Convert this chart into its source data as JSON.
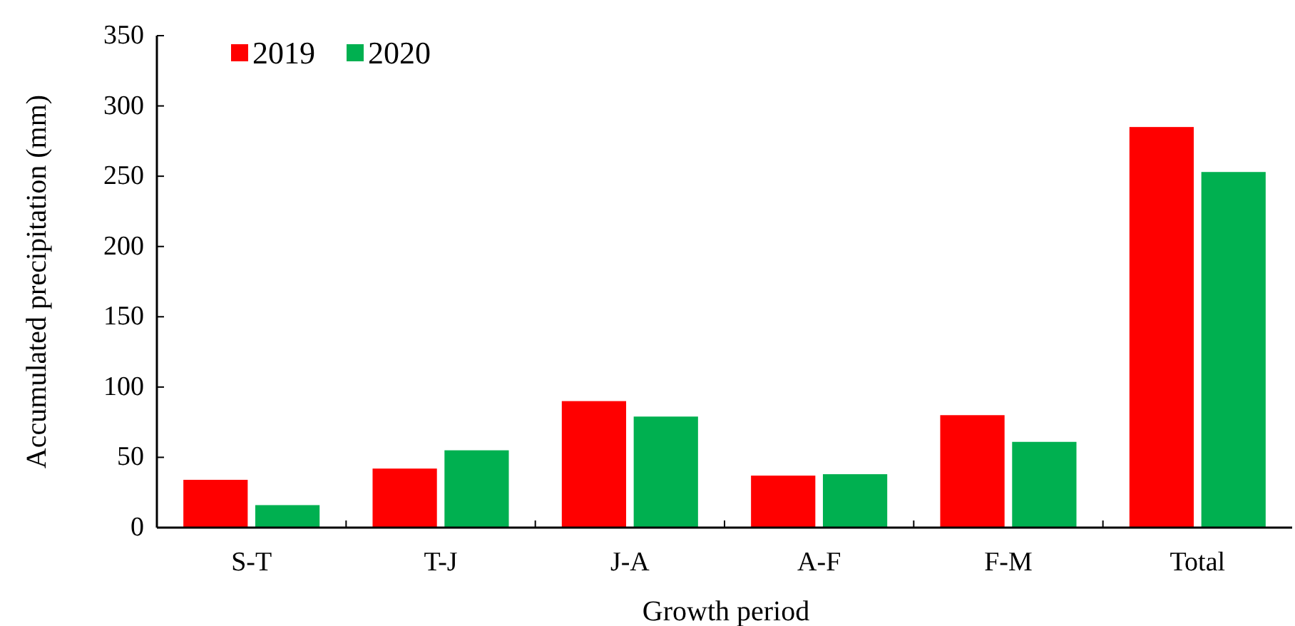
{
  "chart_data": {
    "type": "bar",
    "xlabel": "Growth period",
    "ylabel": "Accumulated precipitation (mm)",
    "categories": [
      "S-T",
      "T-J",
      "J-A",
      "A-F",
      "F-M",
      "Total"
    ],
    "series": [
      {
        "name": "2019",
        "color": "#ff0000",
        "values": [
          34,
          42,
          90,
          37,
          80,
          285
        ]
      },
      {
        "name": "2020",
        "color": "#00b050",
        "values": [
          16,
          55,
          79,
          38,
          61,
          253
        ]
      }
    ],
    "ylim": [
      0,
      350
    ],
    "yticks": [
      0,
      50,
      100,
      150,
      200,
      250,
      300,
      350
    ],
    "grid": false,
    "legend": "top left"
  }
}
